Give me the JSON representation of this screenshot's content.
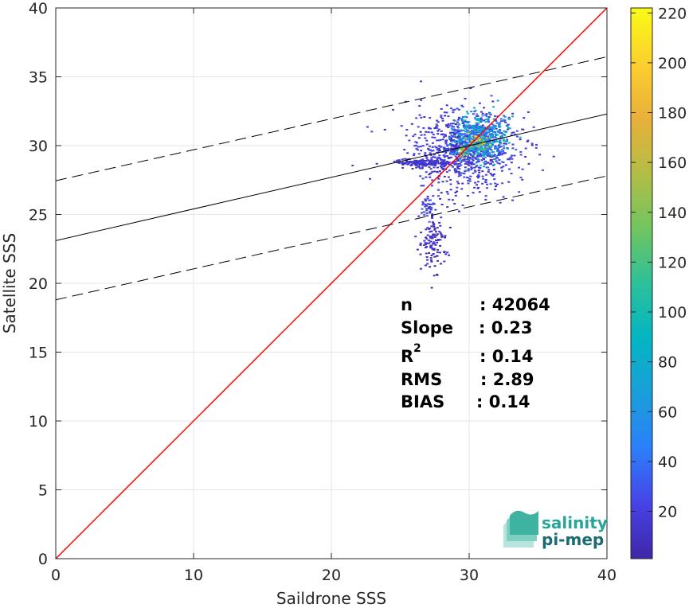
{
  "chart_data": {
    "type": "scatter",
    "subtype": "density-scatter (2D histogram)",
    "xlabel": "Saildrone SSS",
    "ylabel": "Satellite SSS",
    "xlim": [
      0,
      40
    ],
    "ylim": [
      0,
      40
    ],
    "x_ticks": [
      "0",
      "10",
      "20",
      "30",
      "40"
    ],
    "y_ticks": [
      "0",
      "5",
      "10",
      "15",
      "20",
      "25",
      "30",
      "35",
      "40"
    ],
    "grid": true,
    "reference_lines": [
      {
        "type": "identity",
        "color": "#ff0000",
        "from": [
          0,
          0
        ],
        "to": [
          40,
          40
        ]
      },
      {
        "type": "regression",
        "color": "#000000",
        "style": "solid",
        "intercept": 23.1,
        "slope": 0.23
      },
      {
        "type": "regression-upper",
        "color": "#000000",
        "style": "dashed",
        "intercept": 27.45,
        "slope": 0.225
      },
      {
        "type": "regression-lower",
        "color": "#000000",
        "style": "dashed",
        "intercept": 18.8,
        "slope": 0.225
      }
    ],
    "density_clusters": [
      {
        "x": 29.5,
        "y": 29.8,
        "sx": 2.0,
        "sy": 1.4,
        "n": 900,
        "level": 20
      },
      {
        "x": 30.8,
        "y": 30.6,
        "sx": 0.9,
        "sy": 0.8,
        "n": 500,
        "level": 70
      },
      {
        "x": 30.6,
        "y": 30.2,
        "sx": 0.35,
        "sy": 0.35,
        "n": 60,
        "level": 150
      },
      {
        "x": 29.5,
        "y": 29.6,
        "sx": 0.25,
        "sy": 0.25,
        "n": 30,
        "level": 140
      },
      {
        "x": 26.6,
        "y": 28.8,
        "sx": 1.0,
        "sy": 0.15,
        "n": 140,
        "level": 15
      },
      {
        "x": 27.0,
        "y": 25.5,
        "sx": 0.25,
        "sy": 0.35,
        "n": 40,
        "level": 25
      },
      {
        "x": 27.3,
        "y": 23.0,
        "sx": 0.5,
        "sy": 1.1,
        "n": 120,
        "level": 12
      }
    ],
    "colorbar": {
      "min": 1,
      "max": 222,
      "ticks": [
        "20",
        "40",
        "60",
        "80",
        "100",
        "120",
        "140",
        "160",
        "180",
        "200",
        "220"
      ],
      "colormap": "parula",
      "colors": [
        "#3e26a8",
        "#4743e6",
        "#2c7ffa",
        "#1a9fd9",
        "#04b5c3",
        "#2dc09a",
        "#72c560",
        "#b3bd45",
        "#e9b03a",
        "#fcd02e",
        "#f9fb15"
      ]
    },
    "stats": {
      "n": {
        "label": "n",
        "value": ": 42064"
      },
      "slope": {
        "label": "Slope",
        "value": ": 0.23"
      },
      "r2": {
        "label": "R",
        "sup": "2",
        "value": ": 0.14"
      },
      "rms": {
        "label": "RMS",
        "value": ": 2.89"
      },
      "bias": {
        "label": "BIAS",
        "value": ": 0.14"
      }
    }
  },
  "logo": {
    "line1": "salinity",
    "line2": "pi-mep",
    "color1": "#26a69a",
    "color2": "#1b6b73"
  }
}
